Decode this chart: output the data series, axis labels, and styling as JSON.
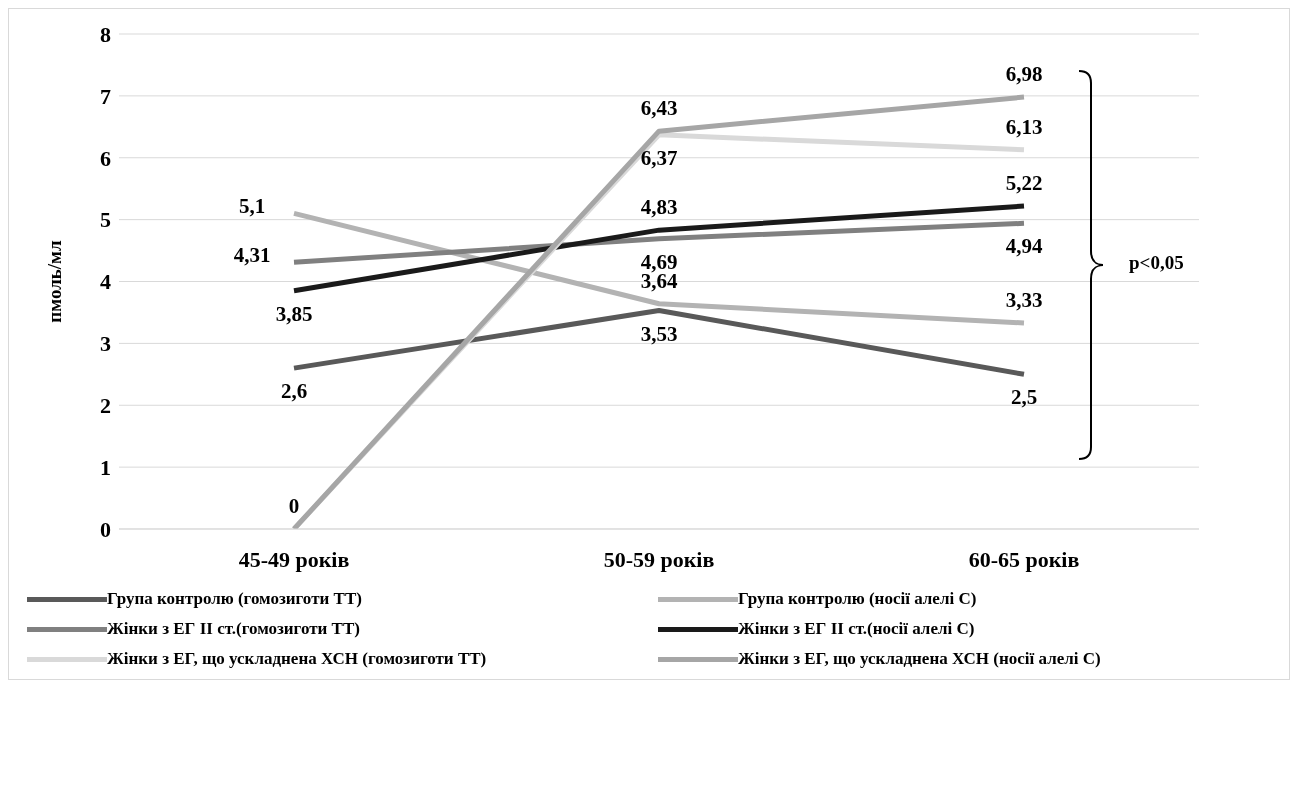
{
  "chart_data": {
    "type": "line",
    "ylabel": "пмоль/мл",
    "categories": [
      "45-49 років",
      "50-59 років",
      "60-65 років"
    ],
    "series": [
      {
        "name": "Група контролю (гомозиготи ТТ)",
        "color": "#595959",
        "values": [
          2.6,
          3.53,
          2.5
        ],
        "value_labels": [
          "2,6",
          "3,53",
          "2,5"
        ]
      },
      {
        "name": "Група контролю (носії алелі С)",
        "color": "#b3b3b3",
        "values": [
          5.1,
          3.64,
          3.33
        ],
        "value_labels": [
          "5,1",
          "3,64",
          "3,33"
        ]
      },
      {
        "name": "Жінки з ЕГ II ст.(гомозиготи ТТ)",
        "color": "#808080",
        "values": [
          4.31,
          4.69,
          4.94
        ],
        "value_labels": [
          "4,31",
          "4,69",
          "4,94"
        ]
      },
      {
        "name": "Жінки з ЕГ II ст.(носії алелі С)",
        "color": "#1a1a1a",
        "values": [
          3.85,
          4.83,
          5.22
        ],
        "value_labels": [
          "3,85",
          "4,83",
          "5,22"
        ]
      },
      {
        "name": "Жінки з ЕГ, що ускладнена ХСН (гомозиготи ТТ)",
        "color": "#d9d9d9",
        "values": [
          0,
          6.37,
          6.13
        ],
        "value_labels": [
          null,
          "6,37",
          "6,13"
        ]
      },
      {
        "name": "Жінки з ЕГ, що ускладнена ХСН (носії алелі С)",
        "color": "#a6a6a6",
        "values": [
          0,
          6.43,
          6.98
        ],
        "value_labels": [
          "0",
          "6,43",
          "6,98"
        ]
      }
    ],
    "ylim": [
      0,
      8
    ],
    "yticks": [
      0,
      1,
      2,
      3,
      4,
      5,
      6,
      7,
      8
    ],
    "grid": "y",
    "legend": "bottom",
    "marker": "none",
    "line_style": "solid",
    "annotations": [
      "p<0,05"
    ]
  }
}
